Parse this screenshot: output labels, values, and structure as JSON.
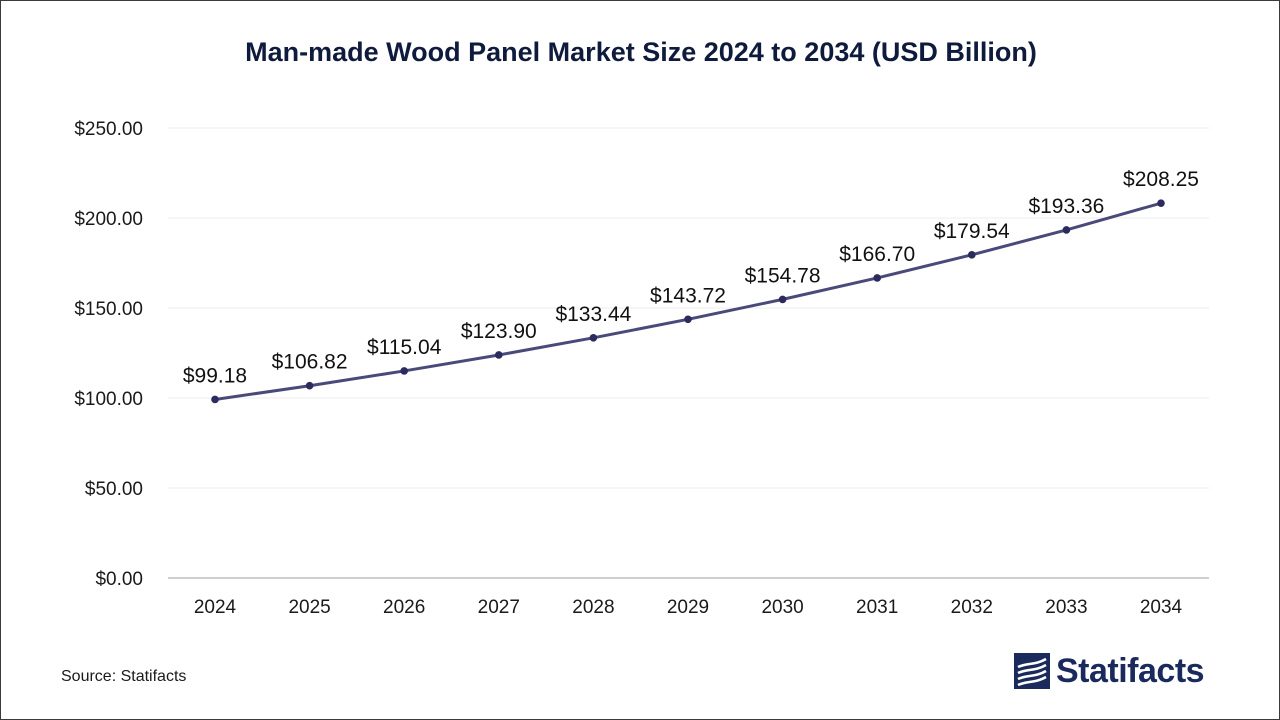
{
  "chart_data": {
    "type": "line",
    "title": "Man-made Wood Panel Market Size 2024 to 2034 (USD Billion)",
    "categories": [
      "2024",
      "2025",
      "2026",
      "2027",
      "2028",
      "2029",
      "2030",
      "2031",
      "2032",
      "2033",
      "2034"
    ],
    "values": [
      99.18,
      106.82,
      115.04,
      123.9,
      133.44,
      143.72,
      154.78,
      166.7,
      179.54,
      193.36,
      208.25
    ],
    "data_labels": [
      "$99.18",
      "$106.82",
      "$115.04",
      "$123.90",
      "$133.44",
      "$143.72",
      "$154.78",
      "$166.70",
      "$179.54",
      "$193.36",
      "$208.25"
    ],
    "y_ticks": [
      0,
      50,
      100,
      150,
      200,
      250
    ],
    "y_tick_labels": [
      "$0.00",
      "$50.00",
      "$100.00",
      "$150.00",
      "$200.00",
      "$250.00"
    ],
    "ylim": [
      0,
      250
    ],
    "grid": true,
    "legend": "none",
    "line_color": "#4a4a7a",
    "marker_color": "#2b2b5e"
  },
  "source_text": "Source: Statifacts",
  "logo": {
    "text": "Statifacts",
    "icon": "statifacts-logo-icon",
    "color": "#1a2a5c"
  }
}
